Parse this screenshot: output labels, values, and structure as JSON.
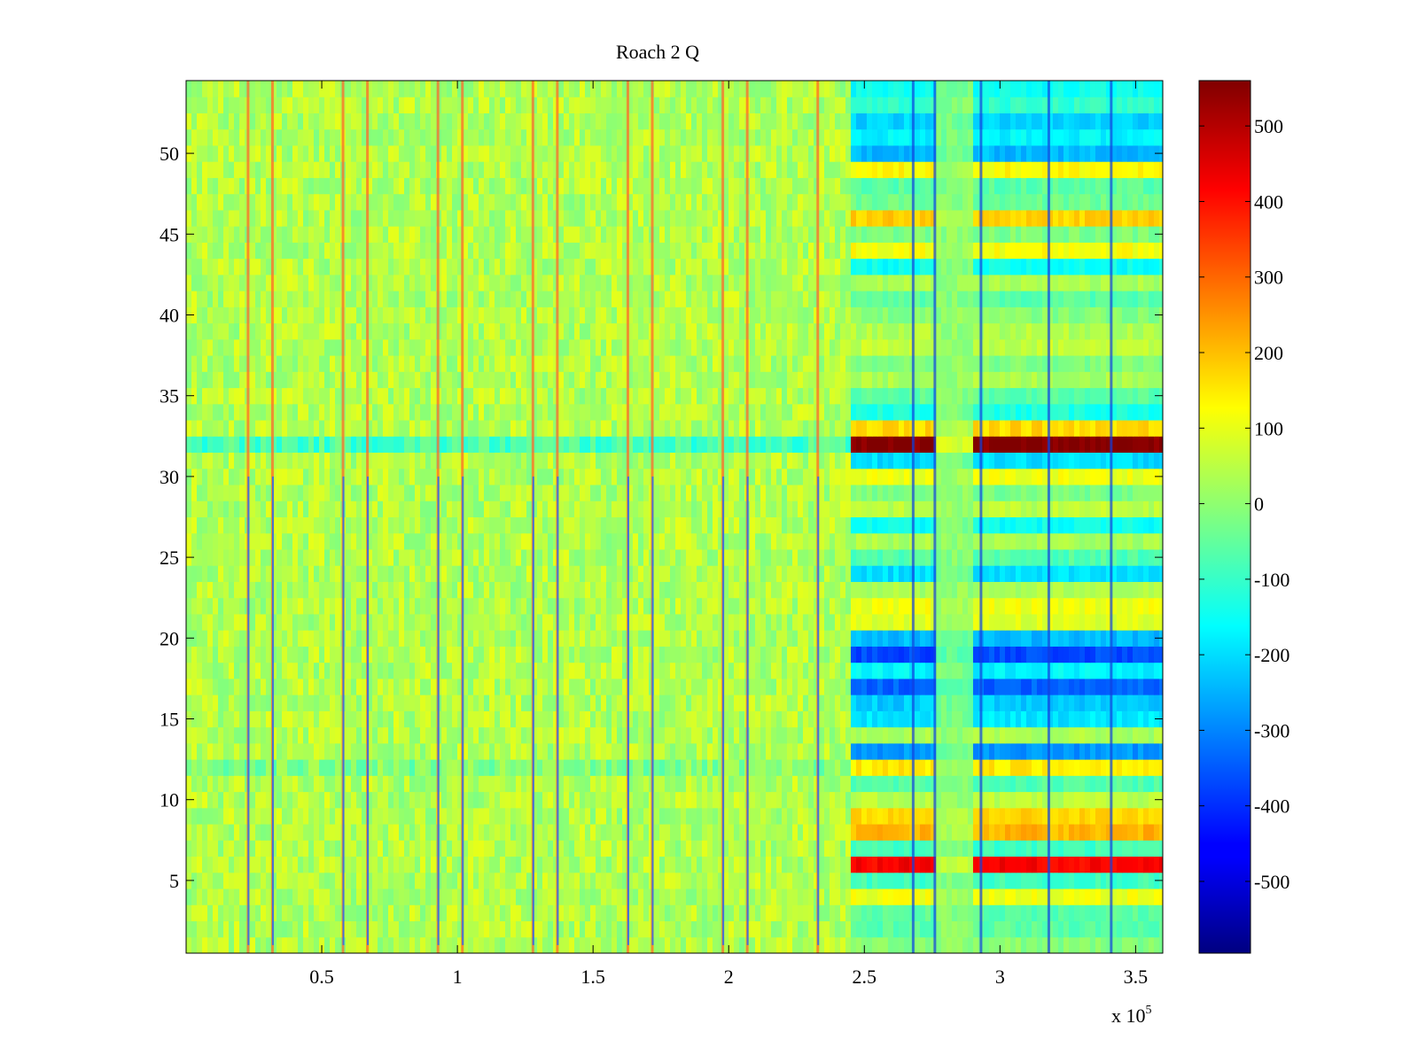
{
  "chart_data": {
    "type": "heatmap",
    "title": "Roach 2 Q",
    "x_range": [
      0,
      360000
    ],
    "y_range": [
      0.5,
      54.5
    ],
    "x_ticks": [
      {
        "value": 50000,
        "label": "0.5"
      },
      {
        "value": 100000,
        "label": "1"
      },
      {
        "value": 150000,
        "label": "1.5"
      },
      {
        "value": 200000,
        "label": "2"
      },
      {
        "value": 250000,
        "label": "2.5"
      },
      {
        "value": 300000,
        "label": "3"
      },
      {
        "value": 350000,
        "label": "3.5"
      }
    ],
    "x_exponent": {
      "base": "x 10",
      "power": "5"
    },
    "y_ticks": [
      {
        "value": 5,
        "label": "5"
      },
      {
        "value": 10,
        "label": "10"
      },
      {
        "value": 15,
        "label": "15"
      },
      {
        "value": 20,
        "label": "20"
      },
      {
        "value": 25,
        "label": "25"
      },
      {
        "value": 30,
        "label": "30"
      },
      {
        "value": 35,
        "label": "35"
      },
      {
        "value": 40,
        "label": "40"
      },
      {
        "value": 45,
        "label": "45"
      },
      {
        "value": 50,
        "label": "50"
      }
    ],
    "colorbar": {
      "colormap": "jet",
      "range": [
        -595,
        560
      ],
      "ticks": [
        {
          "value": 500,
          "label": "500"
        },
        {
          "value": 400,
          "label": "400"
        },
        {
          "value": 300,
          "label": "300"
        },
        {
          "value": 200,
          "label": "200"
        },
        {
          "value": 100,
          "label": "100"
        },
        {
          "value": 0,
          "label": "0"
        },
        {
          "value": -100,
          "label": "-100"
        },
        {
          "value": -200,
          "label": "-200"
        },
        {
          "value": -300,
          "label": "-300"
        },
        {
          "value": -400,
          "label": "-400"
        },
        {
          "value": -500,
          "label": "-500"
        }
      ]
    },
    "background_level": 40,
    "transition_x": 245000,
    "region_break": [
      276000,
      290000
    ],
    "spike_columns": [
      23000,
      32000,
      58000,
      67000,
      93000,
      102000,
      128000,
      137000,
      163000,
      172000,
      198000,
      207000,
      233000
    ],
    "late_spike_columns": [
      268000,
      276000,
      293000,
      318000,
      341000
    ],
    "late_rows": [
      {
        "row": 54,
        "value": -150
      },
      {
        "row": 53,
        "value": -110
      },
      {
        "row": 52,
        "value": -210
      },
      {
        "row": 51,
        "value": -170
      },
      {
        "row": 50,
        "value": -240
      },
      {
        "row": 49,
        "value": 130
      },
      {
        "row": 48,
        "value": -60
      },
      {
        "row": 47,
        "value": -40
      },
      {
        "row": 46,
        "value": 180
      },
      {
        "row": 45,
        "value": -20
      },
      {
        "row": 44,
        "value": 120
      },
      {
        "row": 43,
        "value": -150
      },
      {
        "row": 42,
        "value": 30
      },
      {
        "row": 41,
        "value": -60
      },
      {
        "row": 40,
        "value": -10
      },
      {
        "row": 39,
        "value": 40
      },
      {
        "row": 38,
        "value": 60
      },
      {
        "row": 37,
        "value": -20
      },
      {
        "row": 36,
        "value": 30
      },
      {
        "row": 35,
        "value": -60
      },
      {
        "row": 34,
        "value": -130
      },
      {
        "row": 33,
        "value": 170
      },
      {
        "row": 32,
        "value": 560
      },
      {
        "row": 31,
        "value": -200
      },
      {
        "row": 30,
        "value": 110
      },
      {
        "row": 29,
        "value": -20
      },
      {
        "row": 28,
        "value": 50
      },
      {
        "row": 27,
        "value": -150
      },
      {
        "row": 26,
        "value": 30
      },
      {
        "row": 25,
        "value": -70
      },
      {
        "row": 24,
        "value": -200
      },
      {
        "row": 23,
        "value": 30
      },
      {
        "row": 22,
        "value": 110
      },
      {
        "row": 21,
        "value": 90
      },
      {
        "row": 20,
        "value": -240
      },
      {
        "row": 19,
        "value": -370
      },
      {
        "row": 18,
        "value": -170
      },
      {
        "row": 17,
        "value": -340
      },
      {
        "row": 16,
        "value": -220
      },
      {
        "row": 15,
        "value": -190
      },
      {
        "row": 14,
        "value": 30
      },
      {
        "row": 13,
        "value": -280
      },
      {
        "row": 12,
        "value": 150
      },
      {
        "row": 11,
        "value": -70
      },
      {
        "row": 10,
        "value": 50
      },
      {
        "row": 9,
        "value": 170
      },
      {
        "row": 8,
        "value": 210
      },
      {
        "row": 7,
        "value": -90
      },
      {
        "row": 6,
        "value": 420
      },
      {
        "row": 5,
        "value": -90
      },
      {
        "row": 4,
        "value": 110
      },
      {
        "row": 3,
        "value": -60
      },
      {
        "row": 2,
        "value": -60
      },
      {
        "row": 1,
        "value": -10
      }
    ]
  }
}
